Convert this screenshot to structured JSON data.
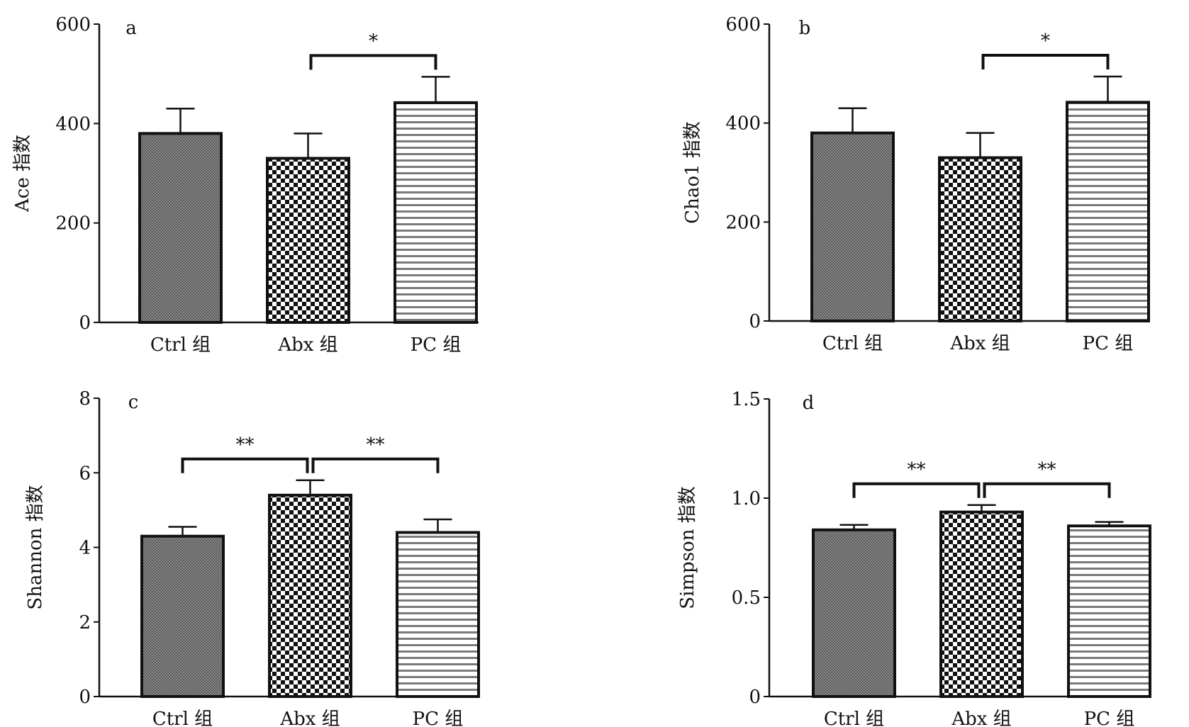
{
  "chart_data": [
    {
      "type": "bar",
      "panel": "a",
      "categories": [
        "Ctrl 组",
        "Abx 组",
        "PC 组"
      ],
      "values": [
        380,
        330,
        442
      ],
      "errors": [
        50,
        50,
        52
      ],
      "ylabel": "Ace 指数",
      "ylim": [
        0,
        600
      ],
      "yticks": [
        0,
        200,
        400,
        600
      ],
      "ytick_labels": [
        "0",
        "200",
        "400",
        "600"
      ],
      "significance": [
        {
          "from": 1,
          "to": 2,
          "label": "*"
        }
      ]
    },
    {
      "type": "bar",
      "panel": "b",
      "categories": [
        "Ctrl 组",
        "Abx 组",
        "PC 组"
      ],
      "values": [
        380,
        330,
        442
      ],
      "errors": [
        50,
        50,
        52
      ],
      "ylabel": "Chao1 指数",
      "ylim": [
        0,
        600
      ],
      "yticks": [
        0,
        200,
        400,
        600
      ],
      "ytick_labels": [
        "0",
        "200",
        "400",
        "600"
      ],
      "significance": [
        {
          "from": 1,
          "to": 2,
          "label": "*"
        }
      ]
    },
    {
      "type": "bar",
      "panel": "c",
      "categories": [
        "Ctrl 组",
        "Abx 组",
        "PC 组"
      ],
      "values": [
        4.3,
        5.4,
        4.4
      ],
      "errors": [
        0.25,
        0.4,
        0.35
      ],
      "ylabel": "Shannon 指数",
      "ylim": [
        0,
        8
      ],
      "yticks": [
        0,
        2,
        4,
        6,
        8
      ],
      "ytick_labels": [
        "0",
        "2",
        "4",
        "6",
        "8"
      ],
      "significance": [
        {
          "from": 0,
          "to": 1,
          "label": "**"
        },
        {
          "from": 1,
          "to": 2,
          "label": "**"
        }
      ]
    },
    {
      "type": "bar",
      "panel": "d",
      "categories": [
        "Ctrl 组",
        "Abx 组",
        "PC 组"
      ],
      "values": [
        0.84,
        0.93,
        0.86
      ],
      "errors": [
        0.025,
        0.035,
        0.02
      ],
      "ylabel": "Simpson 指数",
      "ylim": [
        0,
        1.5
      ],
      "yticks": [
        0,
        0.5,
        1.0,
        1.5
      ],
      "ytick_labels": [
        "0",
        "0.5",
        "1.0",
        "1.5"
      ],
      "significance": [
        {
          "from": 0,
          "to": 1,
          "label": "**"
        },
        {
          "from": 1,
          "to": 2,
          "label": "**"
        }
      ]
    }
  ]
}
